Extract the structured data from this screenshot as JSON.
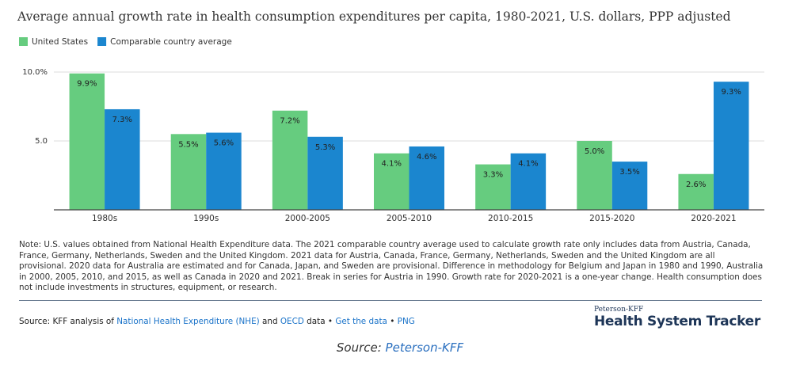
{
  "chart_data": {
    "type": "bar",
    "title": "Average annual growth rate in health consumption expenditures per capita, 1980-2021, U.S. dollars, PPP adjusted",
    "categories": [
      "1980s",
      "1990s",
      "2000-2005",
      "2005-2010",
      "2010-2015",
      "2015-2020",
      "2020-2021"
    ],
    "series": [
      {
        "name": "United States",
        "color": "#66cc7f",
        "values": [
          9.9,
          5.5,
          7.2,
          4.1,
          3.3,
          5.0,
          2.6
        ],
        "value_labels": [
          "9.9%",
          "5.5%",
          "7.2%",
          "4.1%",
          "3.3%",
          "5.0%",
          "2.6%"
        ]
      },
      {
        "name": "Comparable country average",
        "color": "#1b86cf",
        "values": [
          7.3,
          5.6,
          5.3,
          4.6,
          4.1,
          3.5,
          9.3
        ],
        "value_labels": [
          "7.3%",
          "5.6%",
          "5.3%",
          "4.6%",
          "4.1%",
          "3.5%",
          "9.3%"
        ]
      }
    ],
    "ylim": [
      0,
      10
    ],
    "yticks": [
      {
        "value": 10,
        "label": "10.0%"
      },
      {
        "value": 5,
        "label": "5.0"
      }
    ],
    "grid": true,
    "legend": "top-left"
  },
  "note": "Note: U.S. values obtained from National Health Expenditure data. The 2021 comparable country average used to calculate growth rate only includes data from Austria, Canada, France, Germany, Netherlands, Sweden and the United Kingdom. 2021 data for Austria, Canada, France, Germany, Netherlands, Sweden and the United Kingdom are all provisional. 2020 data for Australia are estimated and for Canada, Japan, and Sweden are provisional. Difference in methodology for Belgium and Japan in 1980 and 1990, Australia in 2000, 2005, 2010, and 2015, as well as Canada in 2020 and 2021. Break in series for Austria in 1990. Growth rate for 2020-2021 is a one-year change. Health consumption does not include investments in structures, equipment, or research.",
  "source_parts": [
    {
      "text": "Source: KFF analysis of ",
      "link": false
    },
    {
      "text": "National Health Expenditure (NHE)",
      "link": true
    },
    {
      "text": " and ",
      "link": false
    },
    {
      "text": "OECD",
      "link": true
    },
    {
      "text": " data • ",
      "link": false
    },
    {
      "text": "Get the data",
      "link": true
    },
    {
      "text": " • ",
      "link": false
    },
    {
      "text": "PNG",
      "link": true
    }
  ],
  "brand": {
    "small": "Peterson-KFF",
    "large": "Health System Tracker"
  },
  "caption": {
    "label": "Source: ",
    "link": "Peterson-KFF"
  }
}
